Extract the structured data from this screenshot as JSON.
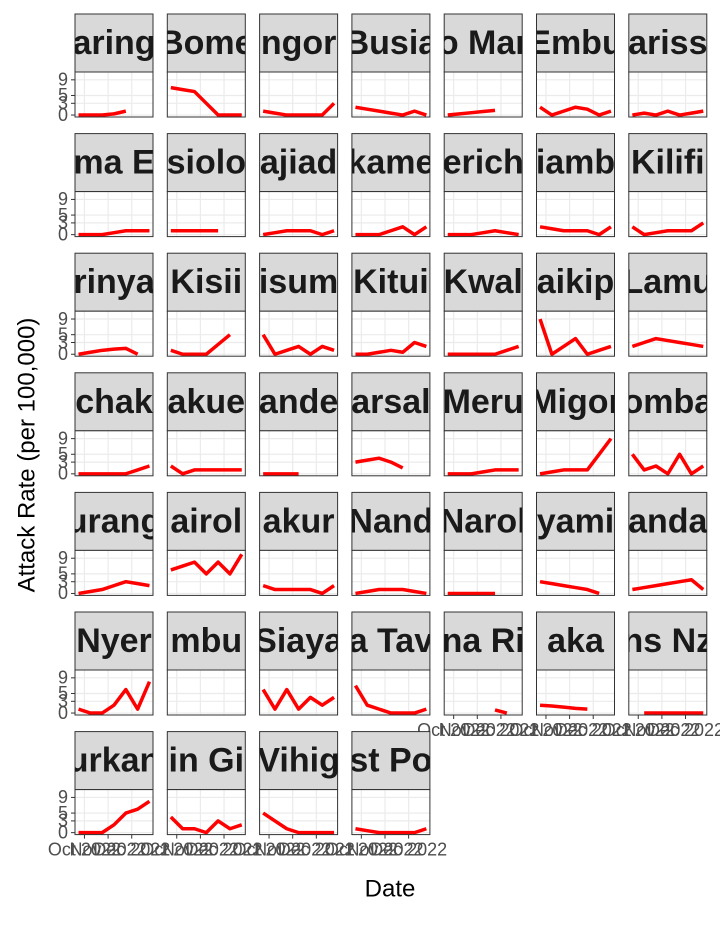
{
  "chart_data": {
    "type": "facet-line",
    "x_label": "Date",
    "y_label": "Attack Rate (per 100,000)",
    "x": [
      0,
      1,
      2,
      3,
      4,
      5,
      6
    ],
    "xlim": [
      -0.3,
      6.3
    ],
    "xticks": [
      {
        "value": 0.5,
        "label": "Oct 2022"
      },
      {
        "value": 2.5,
        "label": "Nov 2022"
      },
      {
        "value": 4.5,
        "label": "Dec 2022"
      }
    ],
    "ylim": [
      -0.5,
      11
    ],
    "yticks": [
      0,
      3,
      5,
      9
    ],
    "color": "#ff0000",
    "grid": true,
    "panels": [
      {
        "title": "aring",
        "values": [
          0,
          0,
          0,
          0.3,
          1,
          null,
          null
        ]
      },
      {
        "title": "Bome",
        "values": [
          7,
          6.5,
          6,
          3,
          0,
          0,
          0
        ]
      },
      {
        "title": "ngor",
        "values": [
          1,
          0.5,
          0,
          0,
          0,
          0,
          3
        ]
      },
      {
        "title": "Busia",
        "values": [
          2,
          1.5,
          1,
          0.5,
          0,
          1,
          0
        ]
      },
      {
        "title": "o Mar",
        "values": [
          0,
          0.3,
          0.6,
          0.9,
          1.2,
          null,
          null
        ]
      },
      {
        "title": "Embu",
        "values": [
          2,
          0,
          1,
          2,
          1.5,
          0,
          1
        ]
      },
      {
        "title": "ariss",
        "values": [
          0,
          0.5,
          0,
          1,
          0,
          0.5,
          1
        ]
      },
      {
        "title": "ma E",
        "values": [
          0,
          0,
          0,
          0.5,
          1,
          1,
          1
        ]
      },
      {
        "title": "siolo",
        "values": [
          1,
          1,
          1,
          1,
          1,
          null,
          null
        ]
      },
      {
        "title": "ajiad",
        "values": [
          0,
          0.5,
          1,
          1,
          1,
          0,
          1
        ]
      },
      {
        "title": "kame",
        "values": [
          0,
          0,
          0,
          1,
          2,
          0,
          2
        ]
      },
      {
        "title": "erich",
        "values": [
          0,
          0,
          0,
          0.5,
          1,
          0.5,
          0
        ]
      },
      {
        "title": "iamb",
        "values": [
          2,
          1.5,
          1,
          1,
          1,
          0,
          2
        ]
      },
      {
        "title": "Kilifi",
        "values": [
          2,
          0,
          0.5,
          1,
          1,
          1,
          3
        ]
      },
      {
        "title": "rinya",
        "values": [
          0,
          0.5,
          1,
          1.3,
          1.5,
          0,
          null
        ]
      },
      {
        "title": "Kisii",
        "values": [
          1,
          0,
          0,
          0,
          2.5,
          5,
          null
        ]
      },
      {
        "title": "isum",
        "values": [
          5,
          0,
          1,
          2,
          0,
          2,
          1
        ]
      },
      {
        "title": "Kitui",
        "values": [
          0,
          0,
          0.5,
          1,
          0.5,
          3,
          2
        ]
      },
      {
        "title": "Kwal",
        "values": [
          0,
          0,
          0,
          0,
          0,
          1,
          2
        ]
      },
      {
        "title": "aikip",
        "values": [
          9,
          0,
          2,
          4,
          0,
          1,
          2
        ]
      },
      {
        "title": "Lamu",
        "values": [
          2,
          3,
          4,
          3.5,
          3,
          2.5,
          2
        ]
      },
      {
        "title": "chak",
        "values": [
          0,
          0,
          0,
          0,
          0,
          1,
          2
        ]
      },
      {
        "title": "akue",
        "values": [
          2,
          0,
          1,
          1,
          1,
          1,
          1
        ]
      },
      {
        "title": "ande",
        "values": [
          0,
          0,
          0,
          0,
          null,
          null,
          null
        ]
      },
      {
        "title": "arsal",
        "values": [
          3,
          3.5,
          4,
          3,
          1.5,
          null,
          null
        ]
      },
      {
        "title": "Meru",
        "values": [
          0,
          0,
          0,
          0.5,
          1,
          1,
          1
        ]
      },
      {
        "title": "Migor",
        "values": [
          0,
          0.5,
          1,
          1,
          1,
          5,
          9
        ]
      },
      {
        "title": "omba",
        "values": [
          5,
          1,
          2,
          0,
          5,
          0,
          2
        ]
      },
      {
        "title": "urang",
        "values": [
          0,
          0.5,
          1,
          2,
          3,
          2.5,
          2
        ]
      },
      {
        "title": "airol",
        "values": [
          6,
          7,
          8,
          5,
          8,
          5,
          10
        ]
      },
      {
        "title": "akur",
        "values": [
          2,
          1,
          1,
          1,
          1,
          0,
          2
        ]
      },
      {
        "title": "Nand",
        "values": [
          0,
          0.5,
          1,
          1,
          1,
          0.5,
          0
        ]
      },
      {
        "title": "Narol",
        "values": [
          0,
          0,
          0,
          0,
          0,
          null,
          null
        ]
      },
      {
        "title": "yami",
        "values": [
          3,
          2.5,
          2,
          1.5,
          1,
          0,
          null
        ]
      },
      {
        "title": "anda",
        "values": [
          1,
          1.5,
          2,
          2.5,
          3,
          3.5,
          1
        ]
      },
      {
        "title": "Nyer",
        "values": [
          1,
          0,
          0,
          2,
          6,
          1,
          8
        ]
      },
      {
        "title": "mbu",
        "values": [
          null,
          null,
          null,
          null,
          null,
          null,
          null
        ]
      },
      {
        "title": "Siaya",
        "values": [
          6,
          1,
          6,
          1,
          4,
          2,
          4
        ]
      },
      {
        "title": "a Tav",
        "values": [
          7,
          2,
          1,
          0,
          0,
          0,
          1
        ]
      },
      {
        "title": "na Ri",
        "values": [
          null,
          null,
          null,
          null,
          0.8,
          0,
          null
        ]
      },
      {
        "title": "aka",
        "values": [
          2,
          1.8,
          1.5,
          1.2,
          1,
          null,
          null
        ]
      },
      {
        "title": "ns Nz",
        "values": [
          null,
          0,
          0,
          0,
          0,
          0,
          0
        ]
      },
      {
        "title": "urkan",
        "values": [
          0,
          0,
          0,
          2,
          5,
          6,
          8
        ]
      },
      {
        "title": "in Gi",
        "values": [
          4,
          1,
          1,
          0,
          3,
          1,
          2
        ]
      },
      {
        "title": "Vihig",
        "values": [
          5,
          3,
          1,
          0,
          0,
          0,
          0
        ]
      },
      {
        "title": "st Po",
        "values": [
          1,
          0.5,
          0,
          0,
          0,
          0,
          1
        ]
      }
    ]
  }
}
